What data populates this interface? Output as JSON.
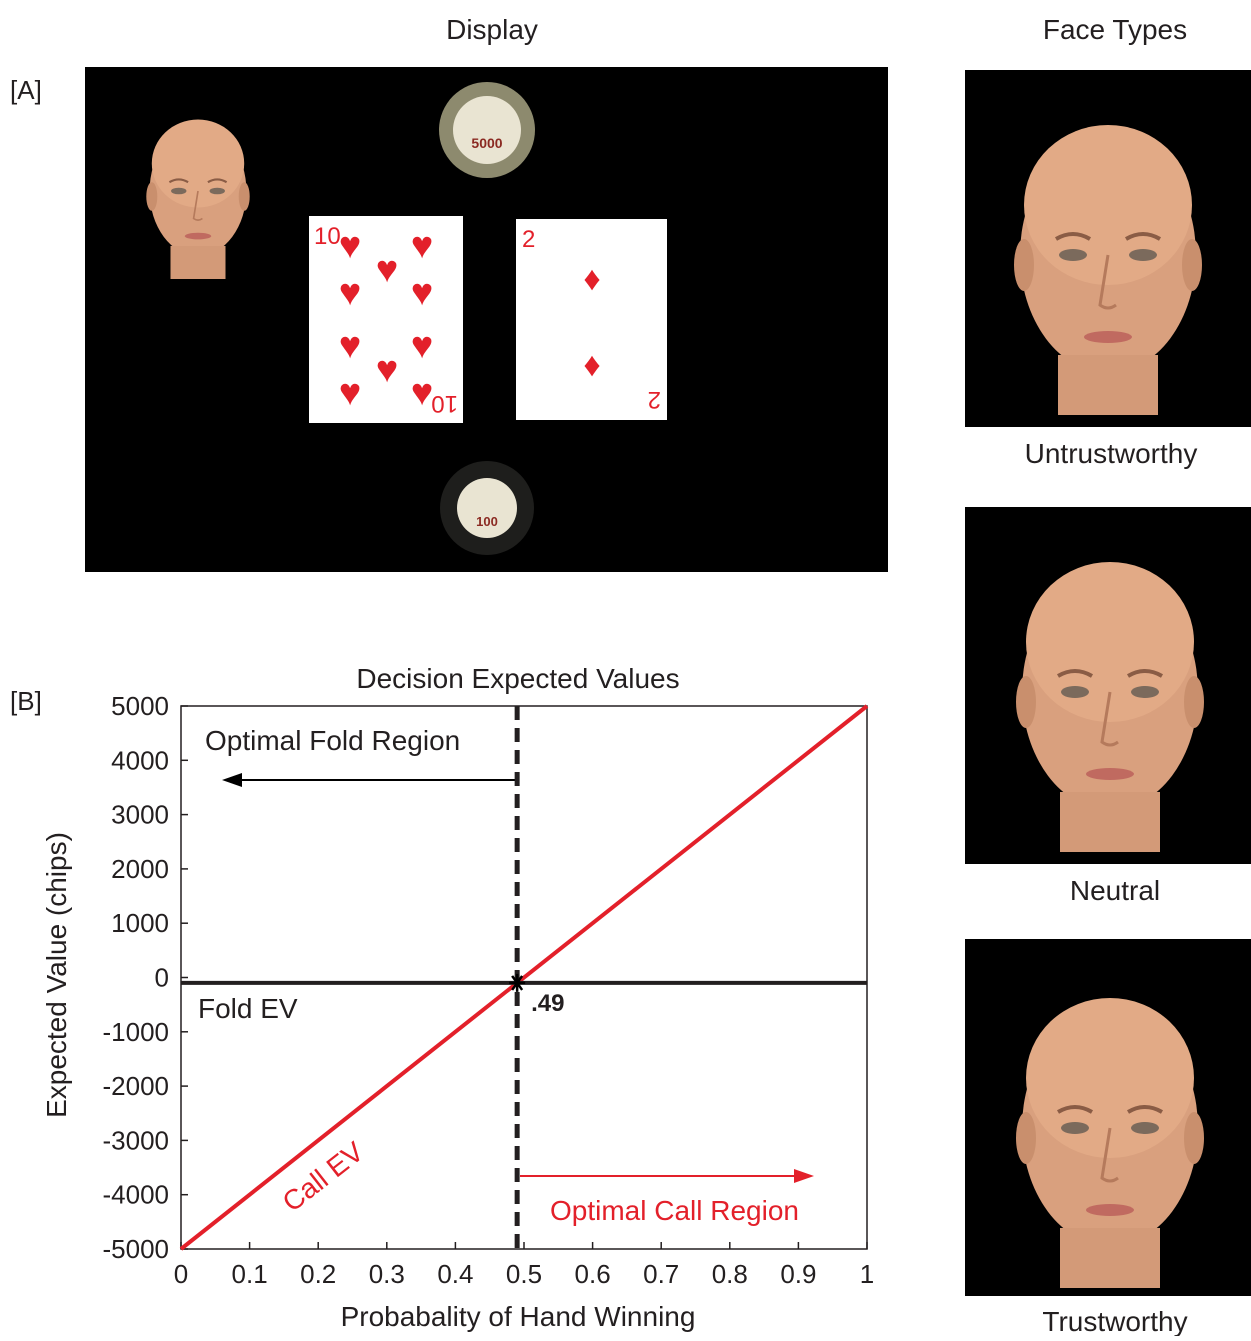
{
  "panel_a": {
    "label": "[A]",
    "title": "Display",
    "chip_top": "5000",
    "card_1_rank": "10",
    "card_2_rank": "2",
    "chip_bottom": "100"
  },
  "face_types": {
    "title": "Face Types",
    "labels": [
      "Untrustworthy",
      "Neutral",
      "Trustworthy"
    ]
  },
  "panel_b_label": "[B]",
  "chart_data": {
    "type": "line",
    "title": "Decision Expected Values",
    "xlabel": "Probabality of Hand Winning",
    "ylabel": "Expected Value (chips)",
    "xlim": [
      0,
      1
    ],
    "ylim": [
      -5000,
      5000
    ],
    "xticks": [
      0,
      0.1,
      0.2,
      0.3,
      0.4,
      0.5,
      0.6,
      0.7,
      0.8,
      0.9,
      1
    ],
    "yticks": [
      -5000,
      -4000,
      -3000,
      -2000,
      -1000,
      0,
      1000,
      2000,
      3000,
      4000,
      5000
    ],
    "series": [
      {
        "name": "Call EV",
        "color": "#e3202a",
        "x": [
          0,
          1
        ],
        "values": [
          -5000,
          5000
        ]
      },
      {
        "name": "Fold EV",
        "color": "#231f20",
        "x": [
          0,
          1
        ],
        "values": [
          -100,
          -100
        ]
      }
    ],
    "threshold": {
      "value": 0.49,
      "label": ".49"
    },
    "annotations": [
      "Optimal Fold Region",
      "Optimal Call Region"
    ]
  }
}
